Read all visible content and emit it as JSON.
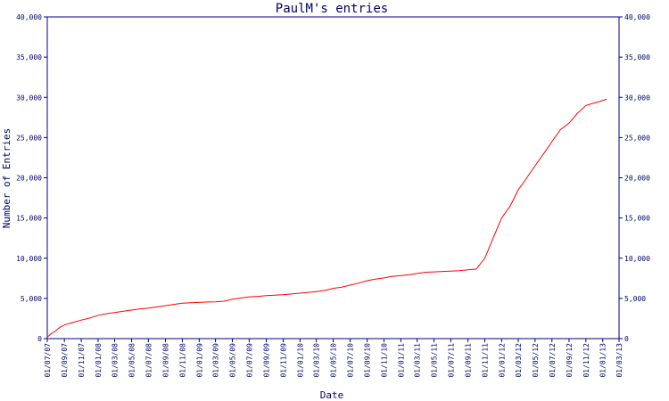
{
  "chart_data": {
    "type": "line",
    "title": "PaulM's entries",
    "xlabel": "Date",
    "ylabel": "Number of Entries",
    "x_tick_labels": [
      "01/07/07",
      "01/09/07",
      "01/11/07",
      "01/01/08",
      "01/03/08",
      "01/05/08",
      "01/07/08",
      "01/09/08",
      "01/11/08",
      "01/01/09",
      "01/03/09",
      "01/05/09",
      "01/07/09",
      "01/09/09",
      "01/11/09",
      "01/01/10",
      "01/03/10",
      "01/05/10",
      "01/07/10",
      "01/09/10",
      "01/11/10",
      "01/01/11",
      "01/03/11",
      "01/05/11",
      "01/07/11",
      "01/09/11",
      "01/11/11",
      "01/01/12",
      "01/03/12",
      "01/05/12",
      "01/07/12",
      "01/09/12",
      "01/11/12",
      "01/01/13",
      "01/03/13"
    ],
    "y_tick_labels": [
      "0",
      "5,000",
      "10,000",
      "15,000",
      "20,000",
      "25,000",
      "30,000",
      "35,000",
      "40,000"
    ],
    "y_ticks": [
      0,
      5000,
      10000,
      15000,
      20000,
      25000,
      30000,
      35000,
      40000
    ],
    "ylim": [
      0,
      40000
    ],
    "xlim": [
      "01/07/07",
      "01/03/13"
    ],
    "y_axis_mirrored_right": true,
    "grid": false,
    "colors": {
      "axis": "#000080",
      "line": "#ff0000",
      "text": "#000066"
    },
    "series": [
      {
        "x": [
          "01/07/07",
          "15/07/07",
          "01/08/07",
          "15/08/07",
          "01/09/07",
          "01/10/07",
          "01/11/07",
          "01/12/07",
          "01/01/08",
          "01/02/08",
          "01/03/08",
          "01/04/08",
          "01/05/08",
          "01/06/08",
          "01/07/08",
          "01/08/08",
          "01/09/08",
          "01/10/08",
          "01/11/08",
          "01/12/08",
          "01/01/09",
          "01/02/09",
          "01/03/09",
          "01/04/09",
          "01/05/09",
          "01/06/09",
          "01/07/09",
          "01/08/09",
          "01/09/09",
          "01/10/09",
          "01/11/09",
          "01/12/09",
          "01/01/10",
          "01/02/10",
          "01/03/10",
          "01/04/10",
          "01/05/10",
          "01/06/10",
          "01/07/10",
          "01/08/10",
          "01/09/10",
          "01/10/10",
          "01/11/10",
          "01/12/10",
          "01/01/11",
          "01/02/11",
          "01/03/11",
          "01/04/11",
          "01/05/11",
          "01/06/11",
          "01/07/11",
          "01/08/11",
          "01/09/11",
          "01/10/11",
          "01/11/11",
          "01/12/11",
          "01/01/12",
          "01/02/12",
          "01/03/12",
          "01/04/12",
          "01/05/12",
          "01/06/12",
          "01/07/12",
          "01/08/12",
          "01/09/12",
          "01/10/12",
          "01/11/12",
          "01/12/12",
          "01/01/13",
          "15/01/13"
        ],
        "values": [
          200,
          600,
          1000,
          1400,
          1700,
          2000,
          2300,
          2550,
          2900,
          3100,
          3250,
          3400,
          3550,
          3700,
          3800,
          3950,
          4100,
          4250,
          4400,
          4450,
          4500,
          4550,
          4580,
          4650,
          4900,
          5050,
          5200,
          5250,
          5350,
          5400,
          5450,
          5550,
          5650,
          5750,
          5850,
          6000,
          6250,
          6400,
          6650,
          6900,
          7200,
          7400,
          7550,
          7750,
          7850,
          7950,
          8100,
          8250,
          8300,
          8350,
          8400,
          8450,
          8550,
          8650,
          10000,
          12500,
          15000,
          16500,
          18500,
          20000,
          21500,
          23000,
          24500,
          26000,
          26800,
          28000,
          29000,
          29300,
          29600,
          29800
        ]
      }
    ]
  }
}
